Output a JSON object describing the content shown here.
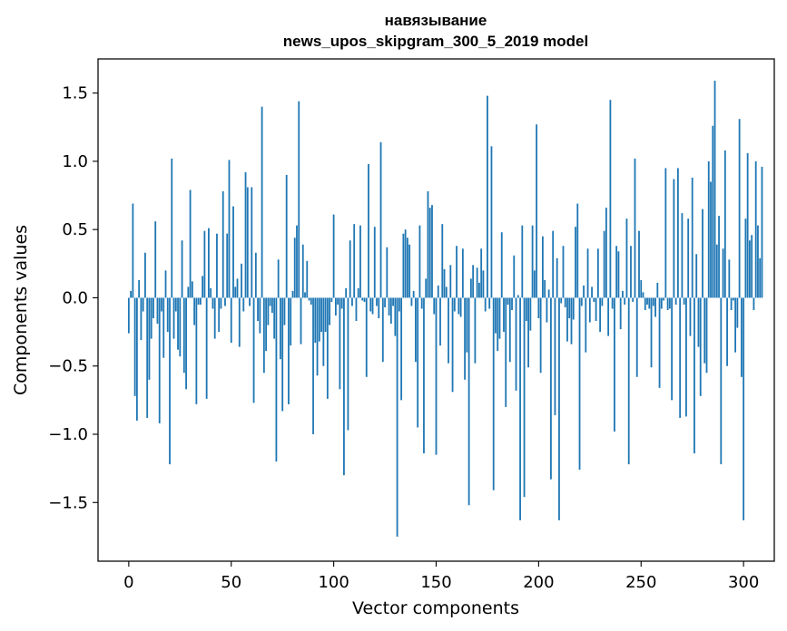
{
  "chart_data": {
    "type": "bar",
    "title": "навязывание",
    "subtitle": "news_upos_skipgram_300_5_2019 model",
    "xlabel": "Vector components",
    "ylabel": "Components values",
    "xlim": [
      -15,
      315
    ],
    "ylim": [
      -1.93,
      1.75
    ],
    "xticks": [
      0,
      50,
      100,
      150,
      200,
      250,
      300
    ],
    "yticks": [
      -1.5,
      -1.0,
      -0.5,
      0.0,
      0.5,
      1.0,
      1.5
    ],
    "xtick_labels": [
      "0",
      "50",
      "100",
      "150",
      "200",
      "250",
      "300"
    ],
    "ytick_labels": [
      "−1.5",
      "−1.0",
      "−0.5",
      "0.0",
      "0.5",
      "1.0",
      "1.5"
    ],
    "bar_color": "#1f77b4",
    "grid": false,
    "legend": "none",
    "x_start": 0,
    "values": [
      -0.26,
      0.05,
      0.69,
      -0.72,
      -0.9,
      0.13,
      -0.31,
      -0.1,
      0.33,
      -0.88,
      -0.6,
      -0.3,
      -0.15,
      0.56,
      -0.19,
      -0.92,
      -0.1,
      -0.44,
      0.2,
      -0.25,
      -1.22,
      1.02,
      -0.3,
      -0.1,
      -0.38,
      -0.43,
      0.42,
      -0.55,
      -0.67,
      0.08,
      0.79,
      0.12,
      -0.2,
      -0.78,
      -0.05,
      -0.05,
      0.16,
      0.49,
      -0.74,
      0.51,
      0.07,
      -0.08,
      -0.3,
      0.47,
      -0.25,
      -0.08,
      0.78,
      -0.06,
      0.47,
      1.01,
      -0.33,
      0.67,
      0.08,
      0.14,
      -0.36,
      0.25,
      -0.1,
      0.92,
      0.81,
      -0.06,
      0.81,
      -0.77,
      0.33,
      -0.17,
      -0.26,
      1.4,
      -0.55,
      -0.39,
      -0.2,
      -0.06,
      -0.11,
      -0.3,
      -1.2,
      0.28,
      -0.45,
      -0.83,
      -0.2,
      0.9,
      -0.78,
      -0.35,
      0.05,
      0.44,
      0.53,
      1.44,
      -0.34,
      0.39,
      0.04,
      0.27,
      -0.02,
      -0.05,
      -1.0,
      -0.33,
      -0.57,
      -0.32,
      -0.25,
      -0.5,
      -0.25,
      -0.74,
      -0.2,
      -0.03,
      0.61,
      -0.13,
      -0.05,
      -0.67,
      -0.08,
      -1.3,
      0.07,
      -0.97,
      0.42,
      -0.06,
      0.54,
      -0.17,
      0.07,
      0.53,
      -0.02,
      -0.03,
      -0.58,
      0.98,
      -0.1,
      -0.12,
      0.52,
      -0.06,
      -0.15,
      1.14,
      -0.47,
      -0.07,
      0.37,
      -0.13,
      -0.19,
      -0.06,
      -0.28,
      -1.75,
      -0.1,
      -0.75,
      0.47,
      0.5,
      0.44,
      0.39,
      -0.06,
      0.05,
      -0.47,
      -0.95,
      0.53,
      -0.08,
      -1.14,
      0.14,
      0.78,
      0.66,
      0.68,
      -0.12,
      -1.15,
      0.09,
      -0.35,
      0.54,
      0.21,
      0.08,
      -0.48,
      0.24,
      -0.69,
      -0.1,
      0.38,
      -0.12,
      -0.14,
      0.36,
      -0.6,
      -0.4,
      -1.52,
      0.14,
      0.24,
      -0.48,
      0.22,
      0.11,
      0.36,
      0.2,
      -0.1,
      1.48,
      -0.08,
      1.11,
      -1.41,
      -0.26,
      -0.39,
      -0.3,
      0.48,
      -0.25,
      -0.8,
      -0.05,
      -0.47,
      -0.09,
      0.31,
      -0.68,
      0.02,
      -1.63,
      0.53,
      -1.46,
      -0.17,
      -0.51,
      -0.24,
      0.53,
      0.2,
      1.27,
      -0.15,
      -0.55,
      0.45,
      0.13,
      -0.18,
      0.06,
      -1.33,
      0.49,
      -0.86,
      0.29,
      -1.63,
      -0.04,
      0.38,
      -0.07,
      -0.32,
      -0.15,
      -0.34,
      -0.16,
      0.52,
      0.69,
      -1.26,
      -0.06,
      0.09,
      -0.4,
      0.36,
      -0.18,
      0.08,
      -0.03,
      -0.17,
      0.36,
      -0.25,
      -0.06,
      0.49,
      0.66,
      -0.28,
      1.45,
      -0.08,
      -0.98,
      0.38,
      0.34,
      -0.23,
      0.05,
      -0.05,
      0.58,
      -1.22,
      0.38,
      -0.03,
      1.02,
      -0.58,
      0.49,
      0.13,
      0.04,
      -0.09,
      -0.05,
      -0.08,
      -0.51,
      -0.06,
      -0.14,
      0.11,
      -0.66,
      -0.08,
      -0.02,
      0.95,
      -0.09,
      -0.08,
      -0.75,
      0.87,
      -0.05,
      0.95,
      -0.88,
      0.62,
      -0.05,
      -0.87,
      0.58,
      -0.28,
      0.88,
      -1.14,
      0.32,
      -0.36,
      -0.72,
      0.65,
      -0.48,
      -0.55,
      1.0,
      0.85,
      1.26,
      1.59,
      0.39,
      0.6,
      -1.22,
      0.36,
      1.08,
      -0.5,
      0.28,
      -0.09,
      -0.02,
      -0.4,
      -0.22,
      1.31,
      -0.58,
      -1.63,
      0.58,
      1.06,
      0.42,
      0.46,
      -0.09,
      1.0,
      0.53,
      0.29,
      0.96
    ]
  }
}
